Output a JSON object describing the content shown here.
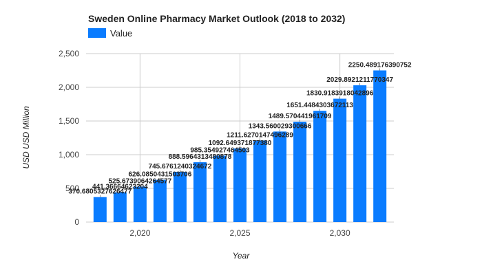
{
  "chart_data": {
    "type": "bar",
    "title": "Sweden Online Pharmacy Market Outlook (2018 to 2032)",
    "xlabel": "Year",
    "ylabel": "USD USD Million",
    "legend": {
      "placement": "top-left",
      "entries": [
        "Value"
      ]
    },
    "grid": true,
    "color": "#0a7cff",
    "x": [
      2018,
      2019,
      2020,
      2021,
      2022,
      2023,
      2024,
      2025,
      2026,
      2027,
      2028,
      2029,
      2030,
      2031,
      2032
    ],
    "x_ticks": [
      "2,020",
      "2,025",
      "2,030"
    ],
    "x_tick_values": [
      2020,
      2025,
      2030
    ],
    "y_ticks": [
      "0",
      "500",
      "1,000",
      "1,500",
      "2,000",
      "2,500"
    ],
    "y_tick_values": [
      0,
      500,
      1000,
      1500,
      2000,
      2500
    ],
    "ylim": [
      0,
      2500
    ],
    "series": [
      {
        "name": "Value",
        "values": [
          370.6805327626477,
          441.366646232043,
          525.6739064264577,
          626.0850431503706,
          745.6761240324672,
          888.5964313480878,
          985.354927464503,
          1092.6493718773809,
          1211.6270147496289,
          1343.5600293006667,
          1489.5704419617098,
          1651.4484303672114,
          1830.9183918042895,
          2029.8921211770346,
          2250.489176390752
        ],
        "labels": [
          "370.6805327626477",
          "441.36664623204",
          "525.6739064264577",
          "626.0850431503706",
          "745.6761240324672",
          "888.5964313480878",
          "985.354927464503",
          "1092.649371877380",
          "1211.6270147496289",
          "1343.560029300666",
          "1489.570441961709",
          "1651.4484303672113",
          "1830.9183918042896",
          "2029.8921211770347",
          "2250.489176390752"
        ]
      }
    ]
  }
}
